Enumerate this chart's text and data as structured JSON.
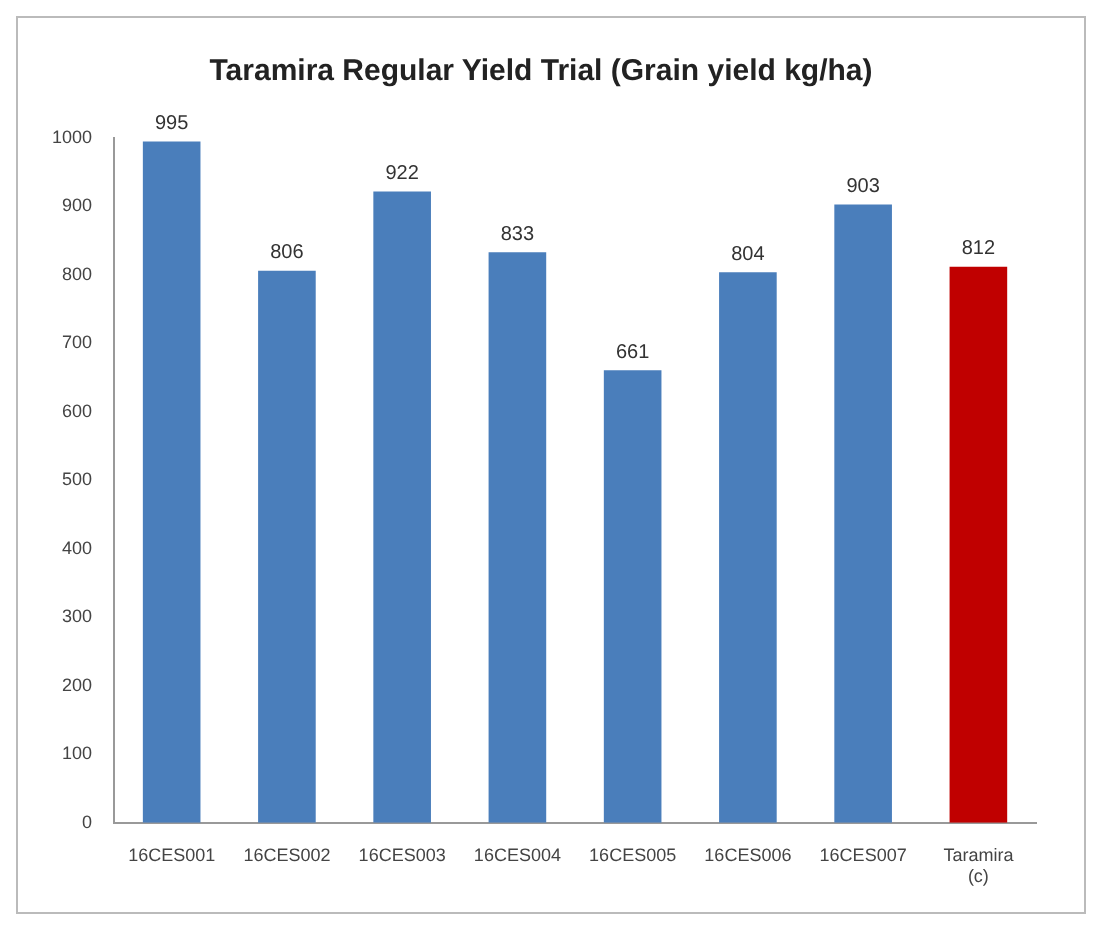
{
  "chart_data": {
    "type": "bar",
    "title": "Taramira Regular Yield Trial (Grain yield kg/ha)",
    "categories": [
      "16CES001",
      "16CES002",
      "16CES003",
      "16CES004",
      "16CES005",
      "16CES006",
      "16CES007",
      "Taramira (c)"
    ],
    "values": [
      995,
      806,
      922,
      833,
      661,
      804,
      903,
      812
    ],
    "colors": [
      "#4a7ebb",
      "#4a7ebb",
      "#4a7ebb",
      "#4a7ebb",
      "#4a7ebb",
      "#4a7ebb",
      "#4a7ebb",
      "#c00000"
    ],
    "ylim": [
      0,
      1000
    ],
    "yticks": [
      0,
      100,
      200,
      300,
      400,
      500,
      600,
      700,
      800,
      900,
      1000
    ],
    "grid": false,
    "legend": false,
    "data_labels": true
  }
}
